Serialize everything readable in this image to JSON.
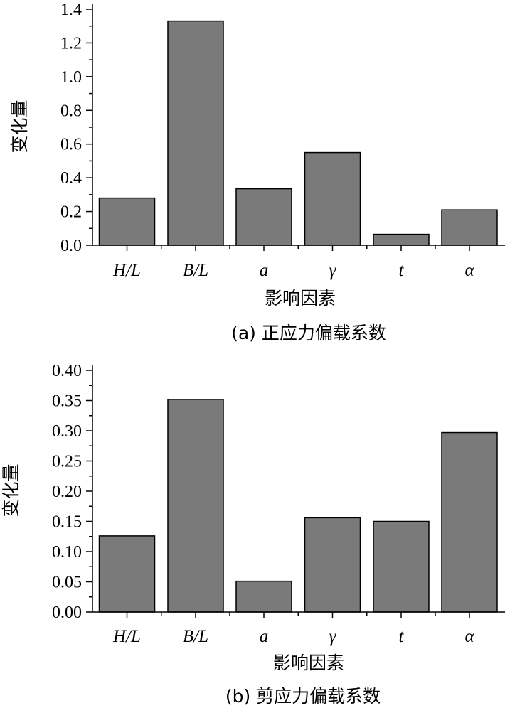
{
  "chart_data": [
    {
      "type": "bar",
      "categories": [
        "H/L",
        "B/L",
        "a",
        "γ",
        "t",
        "α"
      ],
      "values": [
        0.28,
        1.33,
        0.335,
        0.55,
        0.065,
        0.21
      ],
      "ylim": [
        0,
        1.4
      ],
      "yticks": [
        "0.0",
        "0.2",
        "0.4",
        "0.6",
        "0.8",
        "1.0",
        "1.2",
        "1.4"
      ],
      "xlabel": "影响因素",
      "ylabel": "变化量",
      "caption": "(a) 正应力偏载系数",
      "bar_color": "#7a7a7a",
      "grid": false
    },
    {
      "type": "bar",
      "categories": [
        "H/L",
        "B/L",
        "a",
        "γ",
        "t",
        "α"
      ],
      "values": [
        0.126,
        0.352,
        0.051,
        0.156,
        0.15,
        0.297
      ],
      "ylim": [
        0,
        0.4
      ],
      "yticks": [
        "0.00",
        "0.05",
        "0.10",
        "0.15",
        "0.20",
        "0.25",
        "0.30",
        "0.35",
        "0.40"
      ],
      "xlabel": "影响因素",
      "ylabel": "变化量",
      "caption": "(b)  剪应力偏载系数",
      "bar_color": "#7a7a7a",
      "grid": false
    }
  ]
}
